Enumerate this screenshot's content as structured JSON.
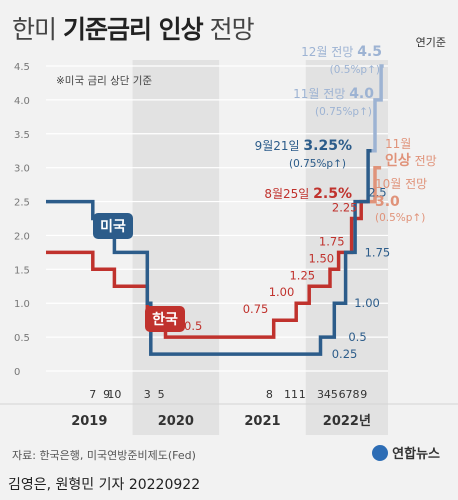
{
  "title": {
    "light": "한미 ",
    "bold": "기준금리 인상",
    "light2": " 전망"
  },
  "unit_note": "연기준",
  "source": "자료: 한국은행, 미국연방준비제도(Fed)",
  "logo_text": "연합뉴스",
  "credit": "김영은, 원형민 기자 20220922",
  "colors": {
    "korea": "#c0322d",
    "us": "#2c5c8a",
    "korea_forecast": "#e0937a",
    "us_forecast": "#9db3d3",
    "grid": "#ffffff",
    "axis_text": "#777777"
  },
  "chart_data": {
    "type": "line",
    "title": "한미 기준금리 인상 전망",
    "ylim": [
      0,
      4.5
    ],
    "yticks": [
      "0",
      "0.5",
      "1.0",
      "1.5",
      "2.0",
      "2.5",
      "3.0",
      "3.5",
      "4.0",
      "4.5"
    ],
    "grid": true,
    "y_note": "※미국 금리 상단 기준",
    "x_month_labels": [
      {
        "t": 2019.54,
        "label": "7"
      },
      {
        "t": 2019.7,
        "label": "9"
      },
      {
        "t": 2019.79,
        "label": "10"
      },
      {
        "t": 2020.17,
        "label": "3"
      },
      {
        "t": 2020.33,
        "label": "5"
      },
      {
        "t": 2021.58,
        "label": "8"
      },
      {
        "t": 2021.83,
        "label": "11"
      },
      {
        "t": 2021.96,
        "label": "1"
      },
      {
        "t": 2022.17,
        "label": "3"
      },
      {
        "t": 2022.25,
        "label": "4"
      },
      {
        "t": 2022.33,
        "label": "5"
      },
      {
        "t": 2022.42,
        "label": "6"
      },
      {
        "t": 2022.5,
        "label": "7"
      },
      {
        "t": 2022.58,
        "label": "8"
      },
      {
        "t": 2022.67,
        "label": "9"
      }
    ],
    "year_bands": [
      {
        "start": 2019.0,
        "end": 2020.0,
        "label": "2019"
      },
      {
        "start": 2020.0,
        "end": 2021.0,
        "label": "2020"
      },
      {
        "start": 2021.0,
        "end": 2022.0,
        "label": "2021"
      },
      {
        "start": 2022.0,
        "end": 2022.95,
        "label": "2022년"
      }
    ],
    "series": [
      {
        "name": "미국",
        "points": [
          [
            2019.0,
            2.5
          ],
          [
            2019.54,
            2.5
          ],
          [
            2019.54,
            2.25
          ],
          [
            2019.7,
            2.25
          ],
          [
            2019.7,
            2.0
          ],
          [
            2019.79,
            2.0
          ],
          [
            2019.79,
            1.75
          ],
          [
            2020.17,
            1.75
          ],
          [
            2020.17,
            1.0
          ],
          [
            2020.21,
            1.0
          ],
          [
            2020.21,
            0.25
          ],
          [
            2022.17,
            0.25
          ],
          [
            2022.17,
            0.5
          ],
          [
            2022.33,
            0.5
          ],
          [
            2022.33,
            1.0
          ],
          [
            2022.46,
            1.0
          ],
          [
            2022.46,
            1.75
          ],
          [
            2022.57,
            1.75
          ],
          [
            2022.57,
            2.5
          ],
          [
            2022.72,
            2.5
          ],
          [
            2022.72,
            3.25
          ],
          [
            2022.76,
            3.25
          ]
        ],
        "labels": [
          {
            "t": 2022.24,
            "v": 0.25,
            "text": "0.25"
          },
          {
            "t": 2022.39,
            "v": 0.5,
            "text": "0.5"
          },
          {
            "t": 2022.5,
            "v": 1.0,
            "text": "1.00"
          },
          {
            "t": 2022.62,
            "v": 1.75,
            "text": "1.75"
          },
          {
            "t": 2022.62,
            "v": 2.5,
            "text": "2.5"
          }
        ]
      },
      {
        "name": "한국",
        "points": [
          [
            2019.0,
            1.75
          ],
          [
            2019.54,
            1.75
          ],
          [
            2019.54,
            1.5
          ],
          [
            2019.79,
            1.5
          ],
          [
            2019.79,
            1.25
          ],
          [
            2020.17,
            1.25
          ],
          [
            2020.17,
            0.75
          ],
          [
            2020.38,
            0.75
          ],
          [
            2020.38,
            0.5
          ],
          [
            2021.63,
            0.5
          ],
          [
            2021.63,
            0.75
          ],
          [
            2021.89,
            0.75
          ],
          [
            2021.89,
            1.0
          ],
          [
            2022.04,
            1.0
          ],
          [
            2022.04,
            1.25
          ],
          [
            2022.28,
            1.25
          ],
          [
            2022.28,
            1.5
          ],
          [
            2022.38,
            1.5
          ],
          [
            2022.38,
            1.75
          ],
          [
            2022.53,
            1.75
          ],
          [
            2022.53,
            2.25
          ],
          [
            2022.64,
            2.25
          ],
          [
            2022.64,
            2.5
          ],
          [
            2022.72,
            2.5
          ]
        ],
        "labels": [
          {
            "t": 2020.7,
            "v": 0.5,
            "text": "0.5"
          },
          {
            "t": 2021.42,
            "v": 0.75,
            "text": "0.75"
          },
          {
            "t": 2021.72,
            "v": 1.0,
            "text": "1.00"
          },
          {
            "t": 2021.96,
            "v": 1.25,
            "text": "1.25"
          },
          {
            "t": 2022.18,
            "v": 1.5,
            "text": "1.50"
          },
          {
            "t": 2022.3,
            "v": 1.75,
            "text": "1.75"
          },
          {
            "t": 2022.45,
            "v": 2.25,
            "text": "2.25"
          }
        ]
      }
    ],
    "us_forecast": {
      "points": [
        [
          2022.72,
          3.25
        ],
        [
          2022.8,
          3.25
        ],
        [
          2022.8,
          4.0
        ],
        [
          2022.87,
          4.0
        ],
        [
          2022.87,
          4.5
        ],
        [
          2022.9,
          4.5
        ]
      ]
    },
    "korea_forecast": {
      "points": [
        [
          2022.72,
          2.5
        ],
        [
          2022.8,
          2.5
        ],
        [
          2022.8,
          3.0
        ],
        [
          2022.87,
          3.0
        ]
      ]
    },
    "annotations": [
      {
        "id": "us-dec",
        "month": "12월 전망",
        "value": "4.5",
        "change": "(0.5%p↑)"
      },
      {
        "id": "us-nov",
        "month": "11월 전망",
        "value": "4.0",
        "change": "(0.75%p↑)"
      },
      {
        "id": "us-sep",
        "month": "9월21일",
        "value": "3.25%",
        "change": "(0.75%p↑)"
      },
      {
        "id": "kr-nov",
        "month": "11월",
        "value": "인상",
        "suffix": "전망"
      },
      {
        "id": "kr-aug",
        "month": "8월25일",
        "value": "2.5%"
      },
      {
        "id": "kr-oct",
        "month": "10월 전망",
        "value": "3.0",
        "change": "(0.5%p↑)"
      }
    ],
    "legend_boxes": [
      {
        "label": "미국",
        "series": "미국"
      },
      {
        "label": "한국",
        "series": "한국"
      }
    ]
  }
}
